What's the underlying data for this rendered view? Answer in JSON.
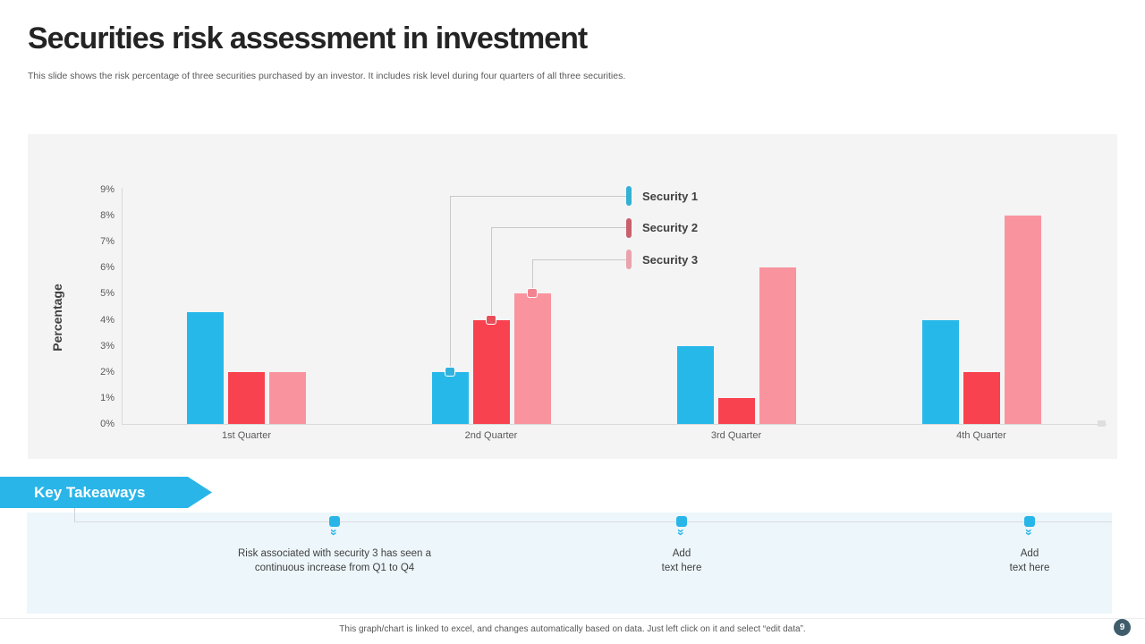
{
  "slide": {
    "title": "Securities risk assessment in investment",
    "subtitle": "This slide shows the risk percentage of three securities purchased by an investor. It includes risk level during four quarters of all three securities.",
    "page_number": "9",
    "footer_note": "This graph/chart is linked to excel, and changes automatically based on data. Just left click on it and select “edit data”."
  },
  "chart_data": {
    "type": "bar",
    "title": "",
    "categories": [
      "1st Quarter",
      "2nd Quarter",
      "3rd Quarter",
      "4th Quarter"
    ],
    "series": [
      {
        "name": "Security 1",
        "color": "#27b8ea",
        "legend_color": "#33b1d3",
        "marker_color": "#2fb3dd",
        "values": [
          4.3,
          2,
          3,
          4
        ]
      },
      {
        "name": "Security 2",
        "color": "#f9424f",
        "legend_color": "#c9606c",
        "marker_color": "#e84e5a",
        "values": [
          2,
          4,
          1,
          2
        ]
      },
      {
        "name": "Security 3",
        "color": "#f9949f",
        "legend_color": "#e9a3ad",
        "marker_color": "#f2838f",
        "values": [
          2,
          5,
          6,
          8
        ]
      }
    ],
    "xlabel": "",
    "ylabel": "Percentage",
    "y_ticks": [
      "9%",
      "8%",
      "7%",
      "6%",
      "5%",
      "4%",
      "3%",
      "2%",
      "1%",
      "0%"
    ],
    "ylim": [
      0,
      9
    ],
    "grid": false,
    "legend_position": "top-right with callout lines to 2nd Quarter bars",
    "callout_category": "2nd Quarter"
  },
  "takeaways": {
    "banner_label": "Key Takeaways",
    "items": [
      {
        "text": "Risk associated with security 3 has seen a\ncontinuous increase from Q1 to Q4"
      },
      {
        "text": "Add\ntext here"
      },
      {
        "text": "Add\ntext here"
      }
    ]
  },
  "colors": {
    "accent_cyan": "#29b5e8",
    "series1": "#27b8ea",
    "series2": "#f9424f",
    "series3": "#f9949f",
    "chart_panel_bg": "#f4f4f4",
    "takeaway_panel_bg": "#edf6fb",
    "page_badge_bg": "#3e5c69",
    "axis_line": "#d9d9d9"
  }
}
